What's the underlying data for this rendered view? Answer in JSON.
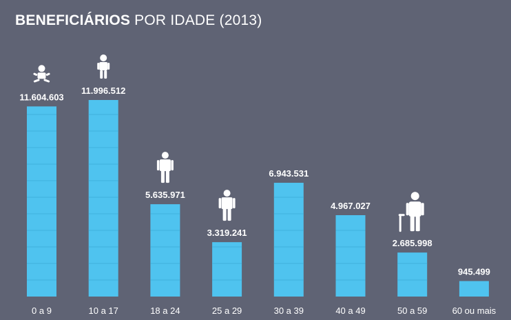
{
  "title": {
    "bold": "BENEFICIÁRIOS",
    "light": "POR IDADE (2013)"
  },
  "colors": {
    "background": "#5f6374",
    "bar": "#4fc3ef",
    "bar_line": "#3fb2de",
    "text": "#ffffff"
  },
  "chart_data": {
    "type": "bar",
    "title": "BENEFICIÁRIOS POR IDADE (2013)",
    "categories": [
      "0 a 9",
      "10 a 17",
      "18 a 24",
      "25 a 29",
      "30 a 39",
      "40 a 49",
      "50 a 59",
      "60 ou mais"
    ],
    "values": [
      11604603,
      11996512,
      5635971,
      3319241,
      6943531,
      4967027,
      2685998,
      945499
    ],
    "value_labels": [
      "11.604.603",
      "11.996.512",
      "5.635.971",
      "3.319.241",
      "6.943.531",
      "4.967.027",
      "2.685.998",
      "945.499"
    ],
    "icons": [
      "baby-icon",
      "child-icon",
      "adult-icon",
      "adult-icon",
      "",
      "",
      "elder-with-cane-icon",
      ""
    ],
    "ylim": [
      0,
      11996512
    ],
    "grid": false,
    "legend": "none"
  }
}
